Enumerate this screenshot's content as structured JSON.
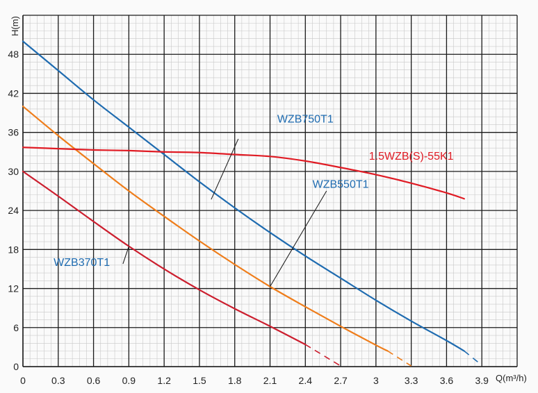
{
  "chart_data": {
    "type": "line",
    "title": "",
    "xlabel": "Q(m³/h)",
    "ylabel": "H(m)",
    "xlim": [
      0,
      4.2
    ],
    "ylim": [
      0,
      54
    ],
    "xticks": [
      0,
      0.3,
      0.6,
      0.9,
      1.2,
      1.5,
      1.8,
      2.1,
      2.4,
      2.7,
      3,
      3.3,
      3.6,
      3.9
    ],
    "yticks": [
      0,
      6,
      12,
      18,
      24,
      30,
      36,
      42,
      48
    ],
    "grid": true,
    "colors": {
      "grid_major": "#1a1a1a",
      "grid_minor": "#c8c8c8",
      "blue": "#1e6bb0",
      "orange": "#ef7d1a",
      "crimson": "#cc1e2e",
      "red": "#e01b24",
      "callout": "#222222"
    },
    "series": [
      {
        "name": "WZB750T1",
        "color_key": "blue",
        "label_color_key": "blue",
        "points": [
          [
            0,
            50
          ],
          [
            0.3,
            45.5
          ],
          [
            0.6,
            41
          ],
          [
            0.9,
            36.8
          ],
          [
            1.2,
            32.6
          ],
          [
            1.5,
            28.4
          ],
          [
            1.8,
            24.4
          ],
          [
            2.1,
            20.6
          ],
          [
            2.4,
            17
          ],
          [
            2.7,
            13.6
          ],
          [
            3,
            10.2
          ],
          [
            3.3,
            7
          ],
          [
            3.6,
            4
          ],
          [
            3.75,
            2.4
          ]
        ],
        "dashed_points": [
          [
            3.75,
            2.4
          ],
          [
            3.88,
            0.5
          ]
        ],
        "label_pos": [
          2.4,
          37.5
        ],
        "leader": [
          [
            1.83,
            35
          ],
          [
            1.6,
            25.7
          ]
        ]
      },
      {
        "name": "WZB550T1",
        "color_key": "orange",
        "label_color_key": "blue",
        "points": [
          [
            0,
            40
          ],
          [
            0.3,
            35.5
          ],
          [
            0.6,
            31.2
          ],
          [
            0.9,
            27
          ],
          [
            1.2,
            23.1
          ],
          [
            1.5,
            19.3
          ],
          [
            1.8,
            15.7
          ],
          [
            2.1,
            12.3
          ],
          [
            2.4,
            9.2
          ],
          [
            2.7,
            6.2
          ],
          [
            3,
            3.3
          ],
          [
            3.1,
            2.4
          ]
        ],
        "dashed_points": [
          [
            3.1,
            2.4
          ],
          [
            3.3,
            0.1
          ]
        ],
        "label_pos": [
          2.7,
          27.5
        ],
        "leader": [
          [
            2.58,
            27
          ],
          [
            2.1,
            12.3
          ]
        ]
      },
      {
        "name": "WZB370T1",
        "color_key": "crimson",
        "label_color_key": "blue",
        "points": [
          [
            0,
            30
          ],
          [
            0.3,
            26.2
          ],
          [
            0.6,
            22.3
          ],
          [
            0.9,
            18.5
          ],
          [
            1.2,
            15
          ],
          [
            1.5,
            11.8
          ],
          [
            1.8,
            8.9
          ],
          [
            2.1,
            6.2
          ],
          [
            2.4,
            3.4
          ]
        ],
        "dashed_points": [
          [
            2.4,
            3.4
          ],
          [
            2.7,
            0.1
          ]
        ],
        "label_pos": [
          0.5,
          15.5
        ],
        "leader": [
          [
            0.85,
            15.8
          ],
          [
            0.9,
            18.5
          ]
        ]
      },
      {
        "name": "1.5WZB(S)-55K1",
        "color_key": "red",
        "label_color_key": "red",
        "points": [
          [
            0,
            33.7
          ],
          [
            0.3,
            33.5
          ],
          [
            0.6,
            33.3
          ],
          [
            0.9,
            33.2
          ],
          [
            1.2,
            33
          ],
          [
            1.5,
            32.9
          ],
          [
            1.8,
            32.6
          ],
          [
            2.1,
            32.3
          ],
          [
            2.4,
            31.6
          ],
          [
            2.7,
            30.6
          ],
          [
            3,
            29.5
          ],
          [
            3.3,
            28.2
          ],
          [
            3.6,
            26.7
          ],
          [
            3.75,
            25.8
          ]
        ],
        "dashed_points": [],
        "label_pos": [
          3.3,
          31.8
        ],
        "leader": []
      }
    ]
  }
}
